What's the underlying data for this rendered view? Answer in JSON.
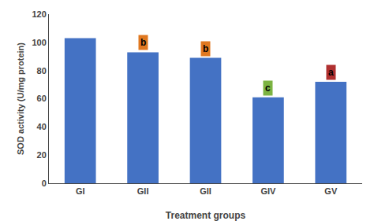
{
  "chart_data": {
    "type": "bar",
    "categories": [
      "GI",
      "GII",
      "GII",
      "GIV",
      "GV"
    ],
    "values": [
      103,
      93,
      89,
      61,
      72
    ],
    "color": "#4472C4",
    "xlabel": "Treatment groups",
    "ylabel": "SOD activity (U/mg protein)",
    "ylim": [
      0,
      120
    ],
    "yticks": [
      0,
      20,
      40,
      60,
      80,
      100,
      120
    ],
    "grid": false,
    "annotations": [
      {
        "text": "b",
        "x": 1,
        "color": "#E07820"
      },
      {
        "text": "b",
        "x": 2,
        "color": "#E07820"
      },
      {
        "text": "c",
        "x": 3,
        "color": "#7CB342"
      },
      {
        "text": "a",
        "x": 4,
        "color": "#B03030"
      }
    ]
  }
}
